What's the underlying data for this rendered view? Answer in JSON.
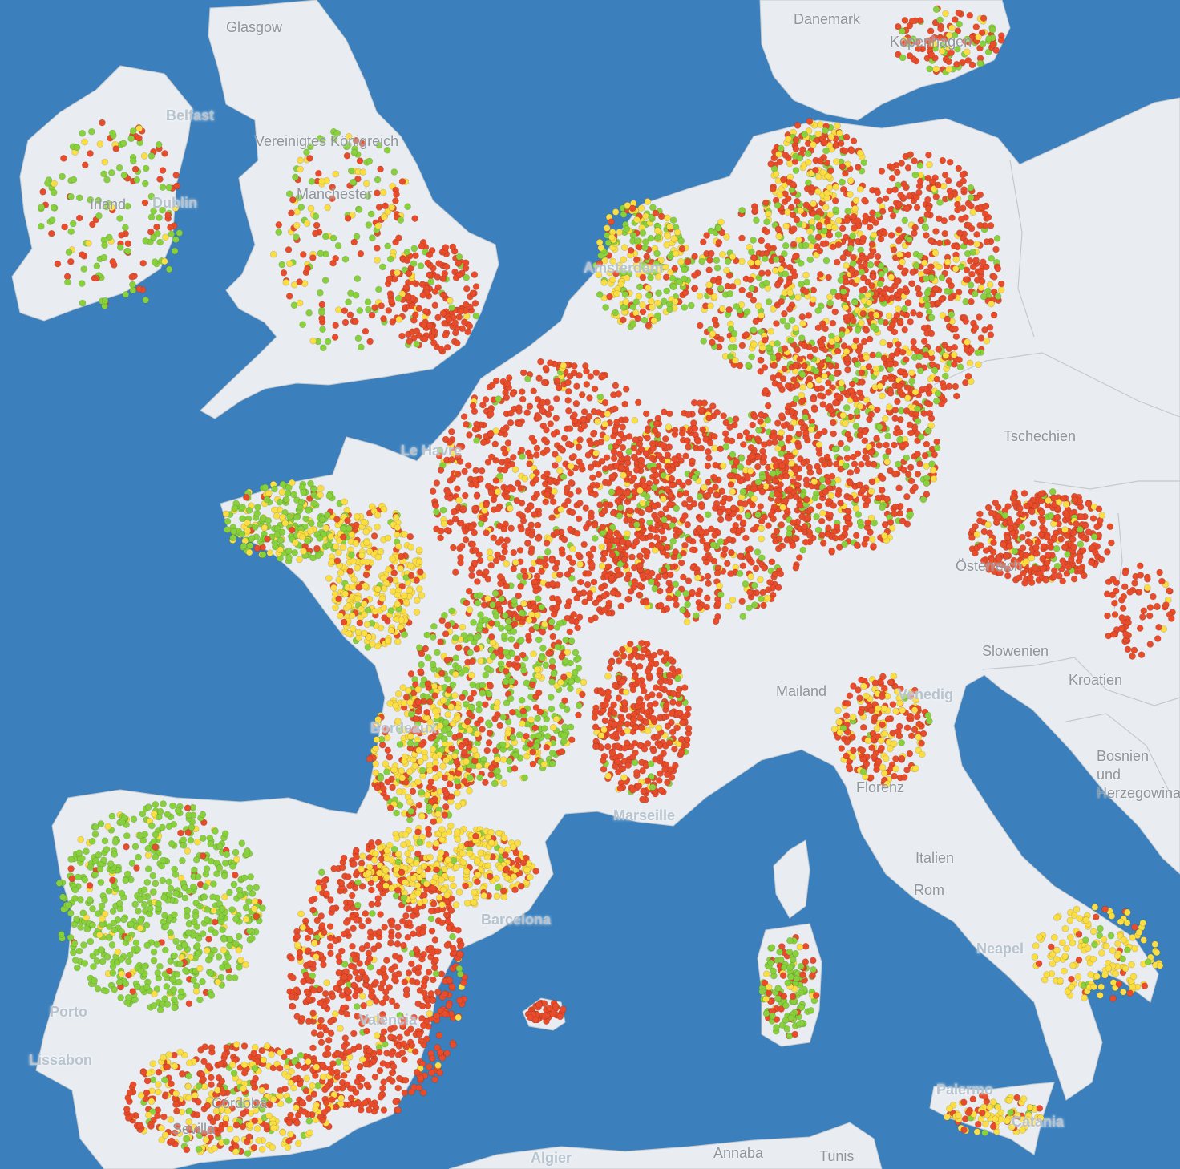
{
  "colors": {
    "sea": "#3b80bd",
    "land": "#e9edf1",
    "border": "#c3c9cf",
    "high": "#e84c2b",
    "medium": "#fbdd44",
    "low": "#88d13c"
  },
  "labels": {
    "country": [
      {
        "id": "danemark",
        "text": "Danemark"
      },
      {
        "id": "vereinigtes-koenigreich",
        "text": "Vereinigtes Königreich"
      },
      {
        "id": "irland",
        "text": "Irland"
      },
      {
        "id": "tschechien",
        "text": "Tschechien"
      },
      {
        "id": "oesterreich",
        "text": "Österreich"
      },
      {
        "id": "slowenien",
        "text": "Slowenien"
      },
      {
        "id": "kroatien",
        "text": "Kroatien"
      },
      {
        "id": "bosnien",
        "text": "Bosnien und Herzegowina"
      },
      {
        "id": "italien",
        "text": "Italien"
      }
    ],
    "city": [
      {
        "id": "glasgow",
        "text": "Glasgow"
      },
      {
        "id": "belfast",
        "text": "Belfast"
      },
      {
        "id": "dublin",
        "text": "Dublin"
      },
      {
        "id": "manchester",
        "text": "Manchester"
      },
      {
        "id": "kopenhagen",
        "text": "Kopenhagen"
      },
      {
        "id": "amsterdam",
        "text": "Amsterdam"
      },
      {
        "id": "le-havre",
        "text": "Le Havre"
      },
      {
        "id": "mailand",
        "text": "Mailand"
      },
      {
        "id": "venedig",
        "text": "Venedig"
      },
      {
        "id": "florenz",
        "text": "Florenz"
      },
      {
        "id": "marseille",
        "text": "Marseille"
      },
      {
        "id": "barcelona",
        "text": "Barcelona"
      },
      {
        "id": "valencia",
        "text": "Valencia"
      },
      {
        "id": "rom",
        "text": "Rom"
      },
      {
        "id": "neapel",
        "text": "Neapel"
      },
      {
        "id": "palermo",
        "text": "Palermo"
      },
      {
        "id": "catania",
        "text": "Catania"
      },
      {
        "id": "lissabon",
        "text": "Lissabon"
      },
      {
        "id": "porto",
        "text": "Porto"
      },
      {
        "id": "cordoba",
        "text": "Córdoba"
      },
      {
        "id": "sevilla",
        "text": "Sevilla"
      },
      {
        "id": "algier",
        "text": "Algier"
      },
      {
        "id": "annaba",
        "text": "Annaba"
      },
      {
        "id": "tunis",
        "text": "Tunis"
      },
      {
        "id": "bordeaux",
        "text": "Bordeaux"
      }
    ]
  }
}
